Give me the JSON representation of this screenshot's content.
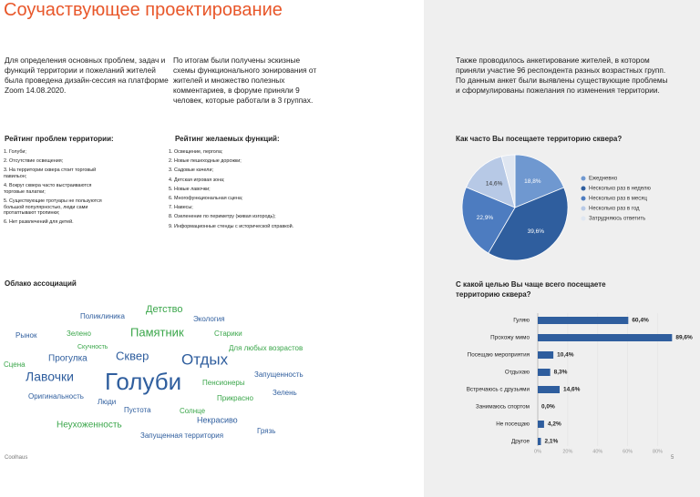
{
  "header": {
    "title": "Соучаствующее проектирование"
  },
  "intro": [
    "Для определения основных проблем, задач и функций территории и пожеланий жителей была проведена дизайн-сессия на платформе Zoom 14.08.2020.",
    "По итогам были получены эскизные схемы функционального зонирования от жителей и множество полезных комментариев, в форуме приняли 9 человек, которые работали в 3 группах."
  ],
  "survey": {
    "text": "Также проводилось анкетирование жителей, в котором приняли участие 96 респондента разных возрастных групп. По данным анкет были выявлены существующие проблемы и сформулированы пожелания по изменения территории."
  },
  "problems": {
    "title": "Рейтинг проблем территории:",
    "items": [
      "1. Голуби;",
      "2. Отсутствие освещения;",
      "3. На территории сквера стоит торговый павильон;",
      "4. Вокруг сквера часто выстраиваются торговые палатки;",
      "5. Существующие тротуары не пользуются большой популярностью, люди сами протаптывают тропинки;",
      "6. Нет развлечений для детей."
    ]
  },
  "functions": {
    "title": "Рейтинг желаемых функций:",
    "items": [
      "1. Освещение, пергола;",
      "2. Новые пешеходные дорожки;",
      "3. Садовые качели;",
      "4. Детская игровая зона;",
      "5. Новые лавочки;",
      "6. Многофункциональная сцена;",
      "7. Навесы;",
      "8. Озеленение по периметру (живая изгородь);",
      "9. Информационные стенды с исторической справкой."
    ]
  },
  "cloud": {
    "title": "Облако ассоциаций",
    "words": [
      "Детство",
      "Поликлиника",
      "Экология",
      "Рынок",
      "Зелено",
      "Памятник",
      "Старики",
      "Скучность",
      "Прогулка",
      "Сквер",
      "Отдых",
      "Для любых возрастов",
      "Сцена",
      "Лавочки",
      "Голуби",
      "Пенсионеры",
      "Запущенность",
      "Оригинальность",
      "Люди",
      "Прикрасно",
      "Зелень",
      "Пустота",
      "Солнце",
      "Неухоженность",
      "Некрасиво",
      "Грязь",
      "Запущенная территория"
    ]
  },
  "chart_data": [
    {
      "type": "pie",
      "title": "Как часто Вы посещаете территорию сквера?",
      "categories": [
        "Ежедневно",
        "Несколько раз в неделю",
        "Несколько раз в месяц",
        "Несколько раз в год",
        "Затрудняюсь ответить"
      ],
      "values": [
        18.8,
        39.6,
        22.9,
        14.6,
        4.1
      ],
      "value_labels": [
        "18,8%",
        "39,6%",
        "22,9%",
        "14,6%",
        null
      ],
      "colors": [
        "#6f98d0",
        "#2f5e9e",
        "#4d7cc0",
        "#b7c9e6",
        "#dfe6f1"
      ]
    },
    {
      "type": "hbar",
      "title": "С какой целью Вы чаще всего посещаете территорию сквера?",
      "categories": [
        "Гуляю",
        "Прохожу мимо",
        "Посещаю мероприятия",
        "Отдыхаю",
        "Встречаюсь с друзьями",
        "Занимаюсь спортом",
        "Не посещаю",
        "Другое"
      ],
      "values": [
        60.4,
        89.6,
        10.4,
        8.3,
        14.6,
        0.0,
        4.2,
        2.1
      ],
      "value_labels": [
        "60,4%",
        "89,6%",
        "10,4%",
        "8,3%",
        "14,6%",
        "0,0%",
        "4,2%",
        "2,1%"
      ],
      "color": "#2f5e9e",
      "xlim": [
        0,
        90
      ],
      "xticks": [
        {
          "value": 0,
          "label": "0%"
        },
        {
          "value": 20,
          "label": "20%"
        },
        {
          "value": 40,
          "label": "40%"
        },
        {
          "value": 60,
          "label": "60%"
        },
        {
          "value": 80,
          "label": "80%"
        }
      ]
    }
  ],
  "footer": {
    "brand": "Coolhaus",
    "page": "5"
  }
}
